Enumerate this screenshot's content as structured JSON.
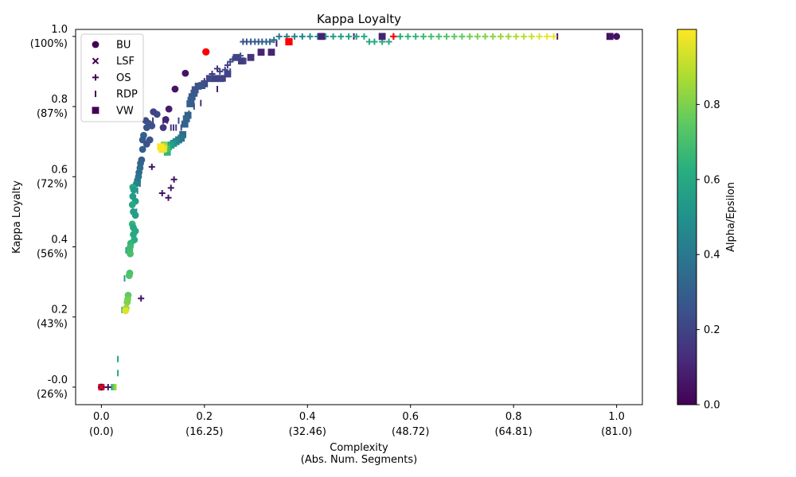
{
  "chart_data": {
    "type": "scatter",
    "title": "Kappa Loyalty",
    "xlabel_line1": "Complexity",
    "xlabel_line2": "(Abs. Num. Segments)",
    "ylabel": "Kappa Loyalty",
    "xlim": [
      -0.05,
      1.05
    ],
    "ylim": [
      -0.05,
      1.02
    ],
    "x_ticks": [
      {
        "value": 0.0,
        "label": "0.0",
        "sub": "(0.0)"
      },
      {
        "value": 0.2,
        "label": "0.2",
        "sub": "(16.25)"
      },
      {
        "value": 0.4,
        "label": "0.4",
        "sub": "(32.46)"
      },
      {
        "value": 0.6,
        "label": "0.6",
        "sub": "(48.72)"
      },
      {
        "value": 0.8,
        "label": "0.8",
        "sub": "(64.81)"
      },
      {
        "value": 1.0,
        "label": "1.0",
        "sub": "(81.0)"
      }
    ],
    "y_ticks": [
      {
        "value": 0.0,
        "label": "-0.0",
        "sub": "(26%)"
      },
      {
        "value": 0.2,
        "label": "0.2",
        "sub": "(43%)"
      },
      {
        "value": 0.4,
        "label": "0.4",
        "sub": "(56%)"
      },
      {
        "value": 0.6,
        "label": "0.6",
        "sub": "(72%)"
      },
      {
        "value": 0.8,
        "label": "0.8",
        "sub": "(87%)"
      },
      {
        "value": 1.0,
        "label": "1.0",
        "sub": "(100%)"
      }
    ],
    "colorbar": {
      "label": "Alpha/Epsilon",
      "range": [
        0.0,
        1.0
      ],
      "ticks": [
        {
          "value": 0.0,
          "label": "0.0"
        },
        {
          "value": 0.2,
          "label": "0.2"
        },
        {
          "value": 0.4,
          "label": "0.4"
        },
        {
          "value": 0.6,
          "label": "0.6"
        },
        {
          "value": 0.8,
          "label": "0.8"
        }
      ],
      "colormap": "viridis"
    },
    "legend_position": "top-left",
    "highlight_color": "#ff0000",
    "series": [
      {
        "name": "BU",
        "marker": "circle",
        "points": [
          [
            0.0,
            0.0,
            0.05
          ],
          [
            1.0,
            1.0,
            0.05
          ],
          [
            0.203,
            0.956,
            0.05
          ],
          [
            0.163,
            0.895,
            0.05
          ],
          [
            0.143,
            0.85,
            0.05
          ],
          [
            0.131,
            0.793,
            0.08
          ],
          [
            0.125,
            0.763,
            0.1
          ],
          [
            0.101,
            0.785,
            0.2
          ],
          [
            0.108,
            0.778,
            0.22
          ],
          [
            0.086,
            0.76,
            0.22
          ],
          [
            0.092,
            0.752,
            0.25
          ],
          [
            0.098,
            0.745,
            0.25
          ],
          [
            0.12,
            0.74,
            0.15
          ],
          [
            0.088,
            0.74,
            0.25
          ],
          [
            0.082,
            0.718,
            0.3
          ],
          [
            0.094,
            0.705,
            0.25
          ],
          [
            0.08,
            0.705,
            0.28
          ],
          [
            0.088,
            0.693,
            0.25
          ],
          [
            0.08,
            0.678,
            0.3
          ],
          [
            0.078,
            0.648,
            0.3
          ],
          [
            0.076,
            0.638,
            0.32
          ],
          [
            0.075,
            0.625,
            0.35
          ],
          [
            0.073,
            0.612,
            0.35
          ],
          [
            0.072,
            0.6,
            0.38
          ],
          [
            0.07,
            0.59,
            0.4
          ],
          [
            0.068,
            0.58,
            0.45
          ],
          [
            0.061,
            0.57,
            0.6
          ],
          [
            0.063,
            0.562,
            0.55
          ],
          [
            0.061,
            0.544,
            0.55
          ],
          [
            0.066,
            0.53,
            0.55
          ],
          [
            0.06,
            0.52,
            0.6
          ],
          [
            0.062,
            0.5,
            0.55
          ],
          [
            0.066,
            0.49,
            0.55
          ],
          [
            0.06,
            0.465,
            0.65
          ],
          [
            0.062,
            0.455,
            0.6
          ],
          [
            0.066,
            0.445,
            0.6
          ],
          [
            0.062,
            0.435,
            0.6
          ],
          [
            0.064,
            0.42,
            0.62
          ],
          [
            0.057,
            0.41,
            0.65
          ],
          [
            0.056,
            0.4,
            0.68
          ],
          [
            0.055,
            0.39,
            0.68
          ],
          [
            0.056,
            0.38,
            0.7
          ],
          [
            0.055,
            0.325,
            0.7
          ],
          [
            0.054,
            0.318,
            0.72
          ],
          [
            0.052,
            0.262,
            0.75
          ],
          [
            0.051,
            0.25,
            0.78
          ],
          [
            0.05,
            0.242,
            0.8
          ],
          [
            0.048,
            0.225,
            0.85
          ],
          [
            0.047,
            0.218,
            0.95
          ]
        ]
      },
      {
        "name": "LSF",
        "marker": "x",
        "points": [
          [
            0.0,
            0.0,
            0.05
          ]
        ]
      },
      {
        "name": "OS",
        "marker": "plus",
        "points": [
          [
            0.013,
            0.0,
            0.05
          ],
          [
            0.077,
            0.253,
            0.05
          ],
          [
            0.098,
            0.628,
            0.05
          ],
          [
            0.118,
            0.553,
            0.05
          ],
          [
            0.13,
            0.54,
            0.05
          ],
          [
            0.135,
            0.568,
            0.05
          ],
          [
            0.141,
            0.592,
            0.05
          ],
          [
            0.567,
            1.0,
            0.05
          ],
          [
            0.2,
            0.872,
            0.1
          ],
          [
            0.21,
            0.88,
            0.12
          ],
          [
            0.215,
            0.893,
            0.15
          ],
          [
            0.225,
            0.908,
            0.15
          ],
          [
            0.23,
            0.9,
            0.18
          ],
          [
            0.24,
            0.905,
            0.2
          ],
          [
            0.245,
            0.918,
            0.2
          ],
          [
            0.25,
            0.928,
            0.22
          ],
          [
            0.255,
            0.935,
            0.22
          ],
          [
            0.262,
            0.94,
            0.25
          ],
          [
            0.27,
            0.945,
            0.25
          ],
          [
            0.275,
            0.985,
            0.25
          ],
          [
            0.282,
            0.985,
            0.25
          ],
          [
            0.29,
            0.985,
            0.28
          ],
          [
            0.298,
            0.985,
            0.28
          ],
          [
            0.305,
            0.985,
            0.3
          ],
          [
            0.312,
            0.985,
            0.3
          ],
          [
            0.32,
            0.985,
            0.3
          ],
          [
            0.327,
            0.985,
            0.32
          ],
          [
            0.335,
            0.99,
            0.35
          ],
          [
            0.345,
            1.0,
            0.4
          ],
          [
            0.36,
            1.0,
            0.4
          ],
          [
            0.375,
            1.0,
            0.45
          ],
          [
            0.39,
            1.0,
            0.45
          ],
          [
            0.405,
            1.0,
            0.5
          ],
          [
            0.42,
            1.0,
            0.5
          ],
          [
            0.435,
            1.0,
            0.52
          ],
          [
            0.45,
            1.0,
            0.55
          ],
          [
            0.465,
            1.0,
            0.55
          ],
          [
            0.48,
            1.0,
            0.58
          ],
          [
            0.495,
            1.0,
            0.58
          ],
          [
            0.51,
            1.0,
            0.6
          ],
          [
            0.52,
            0.985,
            0.6
          ],
          [
            0.53,
            0.985,
            0.6
          ],
          [
            0.545,
            0.985,
            0.6
          ],
          [
            0.558,
            0.985,
            0.6
          ],
          [
            0.58,
            1.0,
            0.62
          ],
          [
            0.595,
            1.0,
            0.65
          ],
          [
            0.61,
            1.0,
            0.65
          ],
          [
            0.625,
            1.0,
            0.68
          ],
          [
            0.64,
            1.0,
            0.7
          ],
          [
            0.655,
            1.0,
            0.7
          ],
          [
            0.67,
            1.0,
            0.72
          ],
          [
            0.685,
            1.0,
            0.75
          ],
          [
            0.7,
            1.0,
            0.75
          ],
          [
            0.715,
            1.0,
            0.78
          ],
          [
            0.73,
            1.0,
            0.8
          ],
          [
            0.745,
            1.0,
            0.8
          ],
          [
            0.76,
            1.0,
            0.82
          ],
          [
            0.775,
            1.0,
            0.85
          ],
          [
            0.79,
            1.0,
            0.85
          ],
          [
            0.805,
            1.0,
            0.88
          ],
          [
            0.82,
            1.0,
            0.9
          ],
          [
            0.835,
            1.0,
            0.92
          ],
          [
            0.85,
            1.0,
            0.95
          ],
          [
            0.865,
            1.0,
            0.97
          ],
          [
            0.878,
            1.0,
            0.98
          ]
        ]
      },
      {
        "name": "RDP",
        "marker": "vline",
        "points": [
          [
            0.02,
            0.0,
            0.6
          ],
          [
            0.022,
            0.0,
            0.7
          ],
          [
            0.025,
            0.0,
            0.8
          ],
          [
            0.028,
            0.0,
            0.85
          ],
          [
            0.032,
            0.08,
            0.6
          ],
          [
            0.032,
            0.04,
            0.6
          ],
          [
            0.04,
            0.22,
            0.7
          ],
          [
            0.045,
            0.31,
            0.55
          ],
          [
            0.048,
            0.39,
            0.55
          ],
          [
            0.055,
            0.4,
            0.6
          ],
          [
            0.068,
            0.5,
            0.5
          ],
          [
            0.07,
            0.56,
            0.45
          ],
          [
            0.075,
            0.58,
            0.4
          ],
          [
            0.1,
            0.76,
            0.15
          ],
          [
            0.12,
            0.76,
            0.15
          ],
          [
            0.128,
            0.76,
            0.18
          ],
          [
            0.135,
            0.74,
            0.15
          ],
          [
            0.14,
            0.74,
            0.15
          ],
          [
            0.145,
            0.74,
            0.2
          ],
          [
            0.15,
            0.76,
            0.2
          ],
          [
            0.155,
            0.74,
            0.2
          ],
          [
            0.16,
            0.76,
            0.25
          ],
          [
            0.17,
            0.78,
            0.3
          ],
          [
            0.18,
            0.8,
            0.25
          ],
          [
            0.193,
            0.81,
            0.15
          ],
          [
            0.225,
            0.85,
            0.1
          ],
          [
            0.24,
            0.88,
            0.15
          ],
          [
            0.25,
            0.9,
            0.2
          ],
          [
            0.28,
            0.93,
            0.2
          ],
          [
            0.34,
            0.98,
            0.05
          ],
          [
            0.49,
            1.0,
            0.05
          ],
          [
            0.885,
            1.0,
            0.05
          ],
          [
            0.985,
            1.0,
            0.05
          ]
        ]
      },
      {
        "name": "VW",
        "marker": "square",
        "points": [
          [
            0.364,
            0.985,
            0.1
          ],
          [
            0.427,
            1.0,
            0.1
          ],
          [
            0.545,
            1.0,
            0.1
          ],
          [
            0.987,
            1.0,
            0.05
          ],
          [
            0.31,
            0.955,
            0.1
          ],
          [
            0.33,
            0.955,
            0.1
          ],
          [
            0.29,
            0.94,
            0.15
          ],
          [
            0.272,
            0.93,
            0.18
          ],
          [
            0.262,
            0.94,
            0.2
          ],
          [
            0.245,
            0.893,
            0.2
          ],
          [
            0.232,
            0.88,
            0.2
          ],
          [
            0.22,
            0.88,
            0.2
          ],
          [
            0.21,
            0.88,
            0.22
          ],
          [
            0.2,
            0.865,
            0.22
          ],
          [
            0.195,
            0.86,
            0.25
          ],
          [
            0.188,
            0.858,
            0.25
          ],
          [
            0.182,
            0.848,
            0.25
          ],
          [
            0.18,
            0.838,
            0.28
          ],
          [
            0.176,
            0.828,
            0.28
          ],
          [
            0.174,
            0.818,
            0.3
          ],
          [
            0.172,
            0.808,
            0.3
          ],
          [
            0.168,
            0.775,
            0.3
          ],
          [
            0.165,
            0.765,
            0.32
          ],
          [
            0.162,
            0.75,
            0.32
          ],
          [
            0.158,
            0.72,
            0.35
          ],
          [
            0.155,
            0.71,
            0.38
          ],
          [
            0.15,
            0.705,
            0.4
          ],
          [
            0.145,
            0.7,
            0.45
          ],
          [
            0.14,
            0.695,
            0.5
          ],
          [
            0.135,
            0.69,
            0.55
          ],
          [
            0.13,
            0.685,
            0.6
          ],
          [
            0.128,
            0.67,
            0.65
          ],
          [
            0.126,
            0.68,
            0.7
          ],
          [
            0.122,
            0.69,
            0.8
          ],
          [
            0.12,
            0.685,
            0.9
          ],
          [
            0.121,
            0.68,
            0.95
          ],
          [
            0.118,
            0.678,
            0.98
          ],
          [
            0.115,
            0.685,
            1.0
          ]
        ]
      }
    ],
    "highlights": [
      {
        "series": "BU",
        "x": 0.203,
        "y": 0.956
      },
      {
        "series": "LSF",
        "x": 0.0,
        "y": 0.0
      },
      {
        "series": "VW",
        "x": 0.364,
        "y": 0.985
      },
      {
        "series": "OS",
        "x": 0.567,
        "y": 1.0
      }
    ]
  }
}
